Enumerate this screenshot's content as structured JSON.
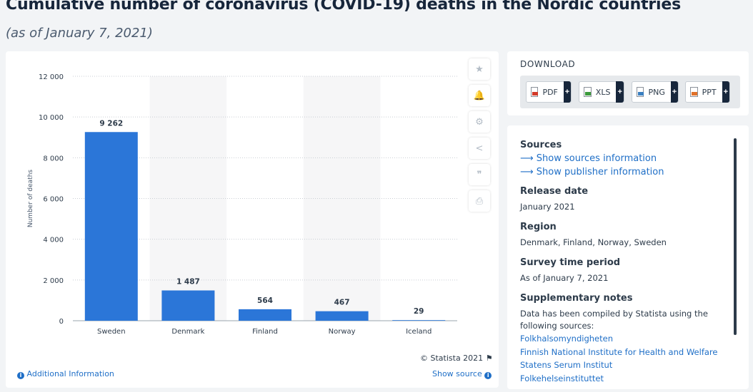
{
  "page": {
    "title": "Cumulative number of coronavirus (COVID-19) deaths in the Nordic countries",
    "subtitle": "(as of January 7, 2021)"
  },
  "chart_data": {
    "type": "bar",
    "categories": [
      "Sweden",
      "Denmark",
      "Finland",
      "Norway",
      "Iceland"
    ],
    "values": [
      9262,
      1487,
      564,
      467,
      29
    ],
    "value_labels": [
      "9 262",
      "1 487",
      "564",
      "467",
      "29"
    ],
    "ylabel": "Number of deaths",
    "xlabel": "",
    "ylim": [
      0,
      12000
    ],
    "yticks": [
      0,
      2000,
      4000,
      6000,
      8000,
      10000,
      12000
    ],
    "ytick_labels": [
      "0",
      "2 000",
      "4 000",
      "6 000",
      "8 000",
      "10 000",
      "12 000"
    ],
    "grid": true,
    "bar_color": "#2b76d8",
    "alt_band_color": "#f6f6f7"
  },
  "chart_footer": {
    "copyright": "© Statista 2021",
    "additional_info": "Additional Information",
    "show_source": "Show source"
  },
  "toolbar": {
    "icons": [
      "star-icon",
      "bell-icon",
      "gear-icon",
      "share-icon",
      "quote-icon",
      "print-icon"
    ]
  },
  "download": {
    "title": "DOWNLOAD",
    "buttons": [
      {
        "label": "PDF",
        "icon": "pdf-icon"
      },
      {
        "label": "XLS",
        "icon": "xls-icon"
      },
      {
        "label": "PNG",
        "icon": "png-icon"
      },
      {
        "label": "PPT",
        "icon": "ppt-icon"
      }
    ],
    "plus": "+"
  },
  "info": {
    "sources_heading": "Sources",
    "show_sources": "Show sources information",
    "show_publisher": "Show publisher information",
    "release_heading": "Release date",
    "release_value": "January 2021",
    "region_heading": "Region",
    "region_value": "Denmark, Finland, Norway, Sweden",
    "survey_heading": "Survey time period",
    "survey_value": "As of January 7, 2021",
    "notes_heading": "Supplementary notes",
    "notes_text": "Data has been compiled by Statista using the following sources:",
    "notes_links": [
      "Folkhalsomyndigheten",
      "Finnish National Institute for Health and Welfare",
      "Statens Serum Institut",
      "Folkehelseinstituttet"
    ]
  }
}
